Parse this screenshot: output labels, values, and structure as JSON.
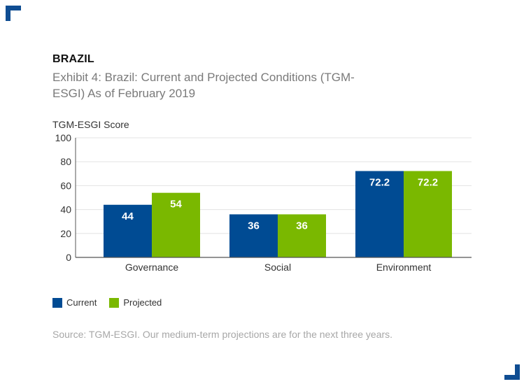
{
  "kicker": "BRAZIL",
  "title": "Exhibit 4: Brazil: Current and Projected Conditions (TGM-ESGI) As of February 2019",
  "source": "Source: TGM-ESGI. Our medium-term projections are for the next three years.",
  "colors": {
    "brand": "#0f4d92",
    "current": "#004b93",
    "projected": "#7ab800",
    "grid": "#e3e3e3",
    "axis": "#555555"
  },
  "chart_data": {
    "type": "bar",
    "title": "Exhibit 4: Brazil: Current and Projected Conditions (TGM-ESGI) As of February 2019",
    "xlabel": "",
    "ylabel": "TGM-ESGI Score",
    "ylim": [
      0,
      100
    ],
    "yticks": [
      0,
      20,
      40,
      60,
      80,
      100
    ],
    "categories": [
      "Governance",
      "Social",
      "Environment"
    ],
    "series": [
      {
        "name": "Current",
        "values": [
          44,
          36,
          72.2
        ]
      },
      {
        "name": "Projected",
        "values": [
          54,
          36,
          72.2
        ]
      }
    ],
    "data_labels": true,
    "grid": true,
    "legend": "bottom-left"
  }
}
